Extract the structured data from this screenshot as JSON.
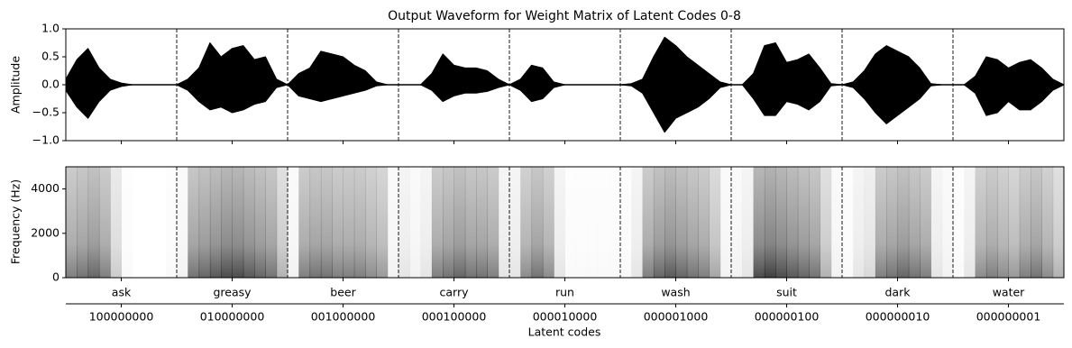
{
  "chart_data": [
    {
      "type": "waveform",
      "title": "Output Waveform for Weight Matrix of Latent Codes 0-8",
      "ylabel": "Amplitude",
      "ylim": [
        -1,
        1
      ],
      "yticks": [
        {
          "value": -1,
          "label": "−1.0"
        },
        {
          "value": -0.5,
          "label": "−0.5"
        },
        {
          "value": 0,
          "label": "0.0"
        },
        {
          "value": 0.5,
          "label": "0.5"
        },
        {
          "value": 1,
          "label": "1.0"
        }
      ],
      "color": "#000000",
      "envelope_upper": [
        [
          0.1,
          0.45,
          0.65,
          0.3,
          0.1,
          0.03,
          0,
          0,
          0,
          0,
          0
        ],
        [
          0,
          0.1,
          0.3,
          0.75,
          0.5,
          0.65,
          0.7,
          0.45,
          0.5,
          0.1,
          0
        ],
        [
          0,
          0.2,
          0.3,
          0.6,
          0.55,
          0.5,
          0.35,
          0.25,
          0.05,
          0,
          0
        ],
        [
          0,
          0,
          0,
          0.2,
          0.55,
          0.35,
          0.3,
          0.3,
          0.25,
          0.1,
          0
        ],
        [
          0,
          0.1,
          0.35,
          0.3,
          0.05,
          0,
          0,
          0,
          0,
          0,
          0
        ],
        [
          0,
          0.02,
          0.1,
          0.5,
          0.85,
          0.7,
          0.5,
          0.35,
          0.2,
          0.05,
          0
        ],
        [
          0,
          0,
          0.2,
          0.7,
          0.75,
          0.4,
          0.45,
          0.55,
          0.3,
          0.02,
          0
        ],
        [
          0,
          0.05,
          0.25,
          0.55,
          0.7,
          0.6,
          0.5,
          0.3,
          0.02,
          0,
          0
        ],
        [
          0,
          0,
          0.15,
          0.5,
          0.45,
          0.3,
          0.4,
          0.45,
          0.3,
          0.1,
          0
        ]
      ],
      "envelope_lower": [
        [
          -0.1,
          -0.4,
          -0.6,
          -0.3,
          -0.1,
          -0.03,
          0,
          0,
          0,
          0,
          0
        ],
        [
          0,
          -0.1,
          -0.3,
          -0.45,
          -0.4,
          -0.5,
          -0.45,
          -0.35,
          -0.3,
          -0.05,
          0
        ],
        [
          0,
          -0.2,
          -0.25,
          -0.3,
          -0.25,
          -0.2,
          -0.15,
          -0.1,
          -0.02,
          0,
          0
        ],
        [
          0,
          0,
          0,
          -0.1,
          -0.3,
          -0.2,
          -0.15,
          -0.15,
          -0.12,
          -0.05,
          0
        ],
        [
          0,
          -0.1,
          -0.3,
          -0.25,
          -0.05,
          0,
          0,
          0,
          0,
          0,
          0
        ],
        [
          0,
          -0.02,
          -0.15,
          -0.5,
          -0.85,
          -0.6,
          -0.5,
          -0.4,
          -0.25,
          -0.05,
          0
        ],
        [
          0,
          0,
          -0.25,
          -0.55,
          -0.55,
          -0.3,
          -0.35,
          -0.45,
          -0.3,
          -0.02,
          0
        ],
        [
          0,
          -0.05,
          -0.25,
          -0.5,
          -0.7,
          -0.55,
          -0.4,
          -0.25,
          -0.02,
          0,
          0
        ],
        [
          0,
          0,
          -0.15,
          -0.55,
          -0.5,
          -0.3,
          -0.45,
          -0.45,
          -0.3,
          -0.1,
          0
        ]
      ]
    },
    {
      "type": "spectrogram",
      "ylabel": "Frequency (Hz)",
      "xlabel": "Latent codes",
      "ylim": [
        0,
        5000
      ],
      "yticks": [
        0,
        2000,
        4000
      ],
      "color": "#000000",
      "categories": [
        "ask",
        "greasy",
        "beer",
        "carry",
        "run",
        "wash",
        "suit",
        "dark",
        "water"
      ],
      "secondary_categories": [
        "100000000",
        "010000000",
        "001000000",
        "000100000",
        "000010000",
        "000001000",
        "000000100",
        "000000010",
        "000000001"
      ],
      "intensity": [
        [
          0.5,
          0.55,
          0.6,
          0.5,
          0.2,
          0.02,
          0,
          0,
          0,
          0.02
        ],
        [
          0.05,
          0.55,
          0.6,
          0.65,
          0.7,
          0.7,
          0.65,
          0.6,
          0.55,
          0.3
        ],
        [
          0.05,
          0.5,
          0.55,
          0.55,
          0.5,
          0.5,
          0.5,
          0.45,
          0.4,
          0.05
        ],
        [
          0.1,
          0.05,
          0.1,
          0.5,
          0.55,
          0.6,
          0.55,
          0.55,
          0.5,
          0.1
        ],
        [
          0.1,
          0.45,
          0.55,
          0.45,
          0.1,
          0.02,
          0.02,
          0.02,
          0.02,
          0.02
        ],
        [
          0.02,
          0.1,
          0.5,
          0.6,
          0.65,
          0.6,
          0.55,
          0.5,
          0.35,
          0.05
        ],
        [
          0.05,
          0.1,
          0.7,
          0.75,
          0.7,
          0.65,
          0.6,
          0.55,
          0.3,
          0.05
        ],
        [
          0.02,
          0.1,
          0.15,
          0.5,
          0.55,
          0.6,
          0.55,
          0.5,
          0.1,
          0.05
        ],
        [
          0.02,
          0.1,
          0.45,
          0.5,
          0.45,
          0.4,
          0.5,
          0.55,
          0.45,
          0.3
        ]
      ]
    }
  ]
}
